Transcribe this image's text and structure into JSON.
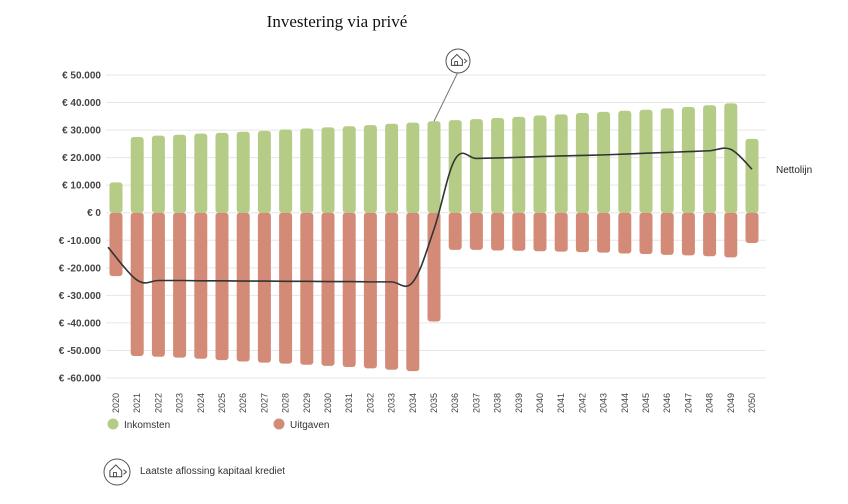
{
  "chart_data": {
    "type": "bar",
    "title": "Investering via privé",
    "xlabel": "",
    "ylabel": "",
    "ylim": [
      -60000,
      50000
    ],
    "yticks": [
      50000,
      40000,
      30000,
      20000,
      10000,
      0,
      -10000,
      -20000,
      -30000,
      -40000,
      -50000,
      -60000
    ],
    "ytick_labels": [
      "€ 50.000",
      "€ 40.000",
      "€ 30.000",
      "€ 20.000",
      "€ 10.000",
      "€ 0",
      "€ -10.000",
      "€ -20.000",
      "€ -30.000",
      "€ -40.000",
      "€ -50.000",
      "€ -60.000"
    ],
    "categories": [
      "2020",
      "2021",
      "2022",
      "2023",
      "2024",
      "2025",
      "2026",
      "2027",
      "2028",
      "2029",
      "2030",
      "2031",
      "2032",
      "2033",
      "2034",
      "2035",
      "2036",
      "2037",
      "2038",
      "2039",
      "2040",
      "2041",
      "2042",
      "2043",
      "2044",
      "2045",
      "2046",
      "2047",
      "2048",
      "2049",
      "2050"
    ],
    "series": [
      {
        "name": "Inkomsten",
        "color": "#b5cc87",
        "values": [
          11000,
          27500,
          28000,
          28300,
          28700,
          29000,
          29400,
          29700,
          30200,
          30600,
          31000,
          31400,
          31800,
          32300,
          32700,
          33200,
          33600,
          34000,
          34400,
          34800,
          35300,
          35700,
          36200,
          36600,
          37000,
          37400,
          37900,
          38400,
          39000,
          39700,
          26800
        ]
      },
      {
        "name": "Uitgaven",
        "color": "#d38b78",
        "values": [
          -23000,
          -52000,
          -52300,
          -52600,
          -53000,
          -53500,
          -54000,
          -54400,
          -54800,
          -55200,
          -55600,
          -56000,
          -56500,
          -57000,
          -57500,
          -39500,
          -13500,
          -13500,
          -13700,
          -13800,
          -14000,
          -14100,
          -14300,
          -14500,
          -14800,
          -15000,
          -15300,
          -15500,
          -15800,
          -16200,
          -11000
        ]
      }
    ],
    "netline": {
      "name": "Nettolijn",
      "color": "#333333",
      "values": [
        -12500,
        -24500,
        -24600,
        -24600,
        -24700,
        -24700,
        -24800,
        -24800,
        -24900,
        -24900,
        -25000,
        -25000,
        -25100,
        -25100,
        -25200,
        -6000,
        19500,
        19700,
        19900,
        20100,
        20400,
        20600,
        20800,
        21000,
        21300,
        21600,
        21900,
        22200,
        22500,
        23000,
        15800
      ]
    },
    "annotation": {
      "icon": "house-icon",
      "category": "2035",
      "text": "Laatste aflossing kapitaal krediet"
    },
    "grid": true,
    "legend_placement": "bottom"
  }
}
